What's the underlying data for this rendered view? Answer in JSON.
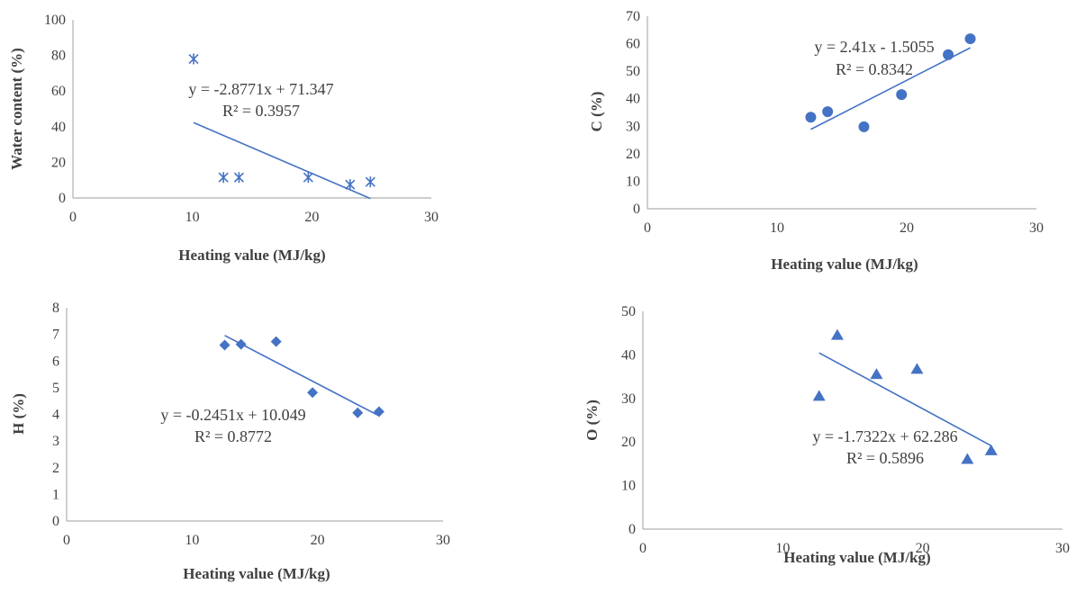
{
  "chart_data": [
    {
      "type": "scatter",
      "title": "",
      "xlabel": "Heating value (MJ/kg)",
      "ylabel": "Water content (%)",
      "xlim": [
        0,
        30
      ],
      "ylim": [
        0,
        100
      ],
      "xticks": [
        0,
        10,
        20,
        30
      ],
      "yticks": [
        0,
        20,
        40,
        60,
        80,
        100
      ],
      "grid": false,
      "marker": "asterisk",
      "color": "#4472C4",
      "points": [
        {
          "x": 10.1,
          "y": 78
        },
        {
          "x": 12.6,
          "y": 11.5
        },
        {
          "x": 13.9,
          "y": 11.5
        },
        {
          "x": 19.7,
          "y": 11.5
        },
        {
          "x": 23.2,
          "y": 7.5
        },
        {
          "x": 24.9,
          "y": 9
        }
      ],
      "trendline": {
        "slope": -2.8771,
        "intercept": 71.347,
        "x_range": [
          10.1,
          24.9
        ]
      },
      "equation": "y = -2.8771x + 71.347",
      "r2": "R² = 0.3957"
    },
    {
      "type": "scatter",
      "title": "",
      "xlabel": "Heating value (MJ/kg)",
      "ylabel": "C (%)",
      "xlim": [
        0,
        30
      ],
      "ylim": [
        0,
        70
      ],
      "xticks": [
        0,
        10,
        20,
        30
      ],
      "yticks": [
        0,
        10,
        20,
        30,
        40,
        50,
        60,
        70
      ],
      "grid": false,
      "marker": "circle",
      "color": "#4472C4",
      "points": [
        {
          "x": 12.6,
          "y": 33.3
        },
        {
          "x": 13.9,
          "y": 35.3
        },
        {
          "x": 16.7,
          "y": 29.8
        },
        {
          "x": 19.6,
          "y": 41.5
        },
        {
          "x": 23.2,
          "y": 56
        },
        {
          "x": 24.9,
          "y": 61.8
        }
      ],
      "trendline": {
        "slope": 2.41,
        "intercept": -1.5055,
        "x_range": [
          12.6,
          24.9
        ]
      },
      "equation": "y = 2.41x - 1.5055",
      "r2": "R² = 0.8342"
    },
    {
      "type": "scatter",
      "title": "",
      "xlabel": "Heating value (MJ/kg)",
      "ylabel": "H (%)",
      "xlim": [
        0,
        30
      ],
      "ylim": [
        0,
        8
      ],
      "xticks": [
        0,
        10,
        20,
        30
      ],
      "yticks": [
        0,
        1,
        2,
        3,
        4,
        5,
        6,
        7,
        8
      ],
      "grid": false,
      "marker": "diamond",
      "color": "#4472C4",
      "points": [
        {
          "x": 12.6,
          "y": 6.6
        },
        {
          "x": 13.9,
          "y": 6.63
        },
        {
          "x": 16.7,
          "y": 6.73
        },
        {
          "x": 19.6,
          "y": 4.82
        },
        {
          "x": 23.2,
          "y": 4.06
        },
        {
          "x": 24.9,
          "y": 4.1
        }
      ],
      "trendline": {
        "slope": -0.2451,
        "intercept": 10.049,
        "x_range": [
          12.6,
          24.9
        ]
      },
      "equation": "y = -0.2451x + 10.049",
      "r2": "R² = 0.8772"
    },
    {
      "type": "scatter",
      "title": "",
      "xlabel": "Heating value (MJ/kg)",
      "ylabel": "O (%)",
      "xlim": [
        0,
        30
      ],
      "ylim": [
        0,
        50
      ],
      "xticks": [
        0,
        10,
        20,
        30
      ],
      "yticks": [
        0,
        10,
        20,
        30,
        40,
        50
      ],
      "grid": false,
      "marker": "triangle",
      "color": "#4472C4",
      "points": [
        {
          "x": 12.6,
          "y": 30.5
        },
        {
          "x": 13.9,
          "y": 44.5
        },
        {
          "x": 16.7,
          "y": 35.5
        },
        {
          "x": 19.6,
          "y": 36.7
        },
        {
          "x": 23.2,
          "y": 16
        },
        {
          "x": 24.9,
          "y": 18
        }
      ],
      "trendline": {
        "slope": -1.7322,
        "intercept": 62.286,
        "x_range": [
          12.6,
          24.9
        ]
      },
      "equation": "y = -1.7322x + 62.286",
      "r2": "R² = 0.5896"
    }
  ]
}
